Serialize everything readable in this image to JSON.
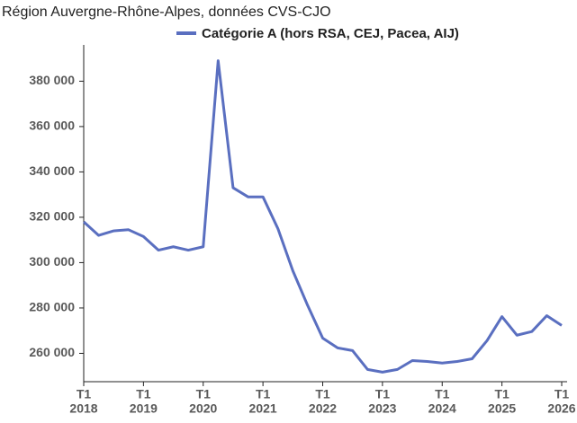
{
  "chart_data": {
    "type": "line",
    "title": "Région Auvergne-Rhône-Alpes, données CVS-CJO",
    "categories": [
      "T1",
      null,
      null,
      null,
      "T1",
      null,
      null,
      null,
      "T1",
      null,
      null,
      null,
      "T1",
      null,
      null,
      null,
      "T1",
      null,
      null,
      null,
      "T1",
      null,
      null,
      null,
      "T1",
      null,
      null,
      null,
      "T1",
      null,
      null,
      null,
      "T1"
    ],
    "category_years": [
      "2018",
      null,
      null,
      null,
      "2019",
      null,
      null,
      null,
      "2020",
      null,
      null,
      null,
      "2021",
      null,
      null,
      null,
      "2022",
      null,
      null,
      null,
      "2023",
      null,
      null,
      null,
      "2024",
      null,
      null,
      null,
      "2025",
      null,
      null,
      null,
      "2026"
    ],
    "series": [
      {
        "name": "Catégorie A (hors RSA, CEJ, Pacea, AIJ)",
        "color": "#5a6fc0",
        "values": [
          318000,
          312000,
          314000,
          314500,
          311500,
          305500,
          307000,
          305500,
          307000,
          389000,
          333000,
          329000,
          329000,
          315000,
          296400,
          281000,
          266700,
          262400,
          261200,
          252900,
          251700,
          252900,
          256800,
          256400,
          255700,
          256400,
          257600,
          265600,
          276200,
          268000,
          269600,
          276600,
          272300
        ]
      }
    ],
    "ylim": [
      247500,
      396000
    ],
    "yticks": [
      {
        "value": 260000,
        "label": "260 000"
      },
      {
        "value": 280000,
        "label": "280 000"
      },
      {
        "value": 300000,
        "label": "300 000"
      },
      {
        "value": 320000,
        "label": "320 000"
      },
      {
        "value": 340000,
        "label": "340 000"
      },
      {
        "value": 360000,
        "label": "360 000"
      },
      {
        "value": 380000,
        "label": "380 000"
      }
    ],
    "legend": "top",
    "grid": false
  }
}
